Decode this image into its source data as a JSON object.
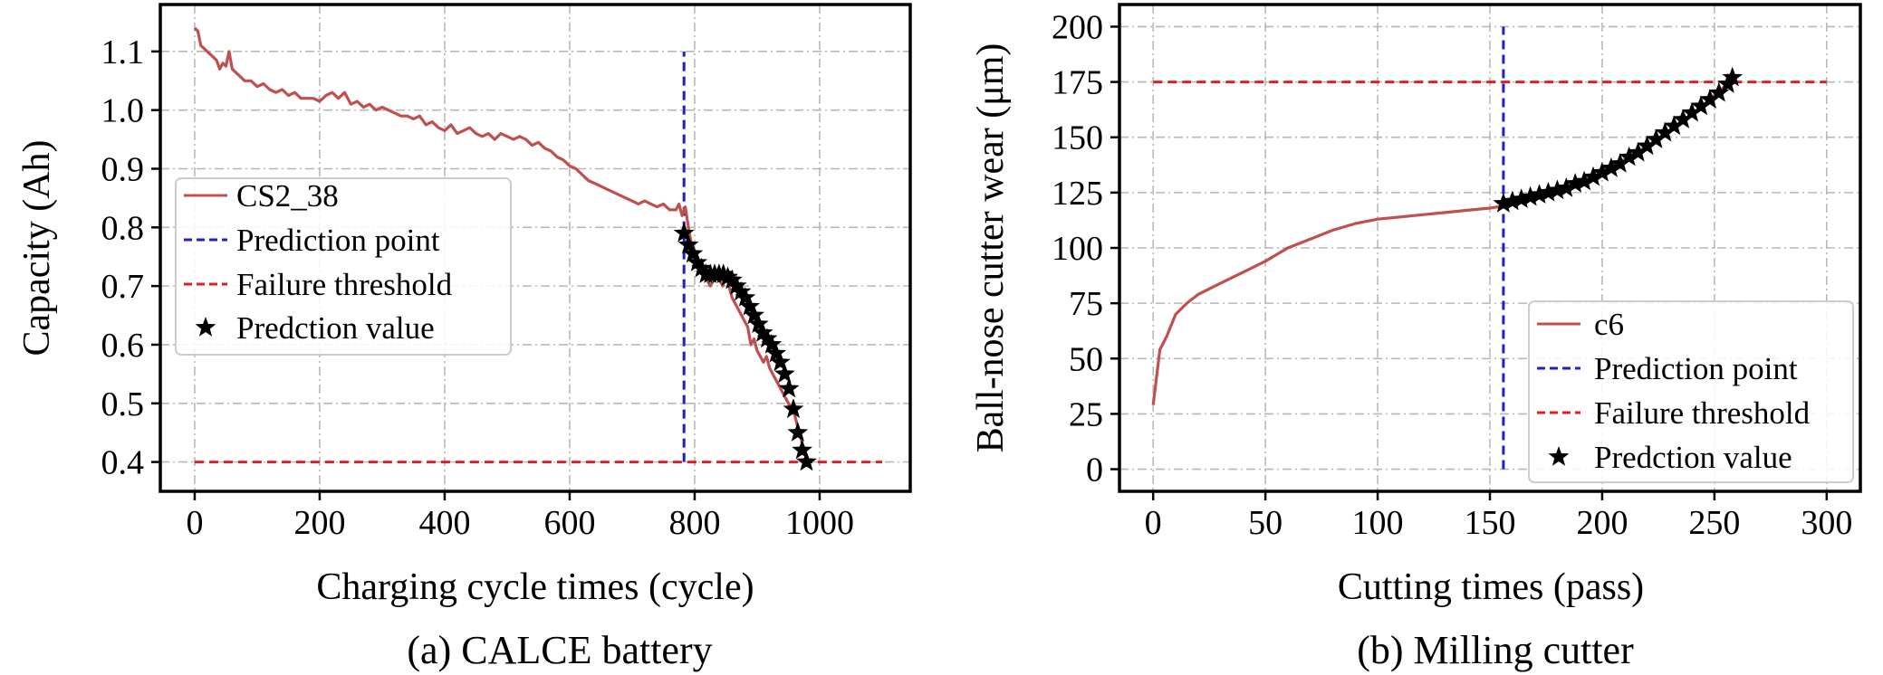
{
  "chart_data": [
    {
      "type": "line",
      "caption": "(a) CALCE battery",
      "xlabel": "Charging cycle times (cycle)",
      "ylabel": "Capacity (Ah)",
      "xlim": [
        -55,
        1145
      ],
      "ylim": [
        0.35,
        1.18
      ],
      "xticks": [
        0,
        200,
        400,
        600,
        800,
        1000
      ],
      "yticks": [
        0.4,
        0.5,
        0.6,
        0.7,
        0.8,
        0.9,
        1.0,
        1.1
      ],
      "ytick_labels": [
        "0.4",
        "0.5",
        "0.6",
        "0.7",
        "0.8",
        "0.9",
        "1.0",
        "1.1"
      ],
      "grid": true,
      "legend_position": "center-left",
      "series": [
        {
          "name": "CS2_38",
          "color": "#c0504d",
          "style": "line",
          "x": [
            0,
            5,
            10,
            15,
            20,
            25,
            30,
            35,
            40,
            45,
            50,
            55,
            60,
            70,
            80,
            90,
            100,
            110,
            120,
            130,
            140,
            150,
            160,
            170,
            180,
            190,
            200,
            210,
            220,
            230,
            240,
            250,
            260,
            270,
            280,
            290,
            300,
            310,
            320,
            330,
            340,
            350,
            360,
            370,
            380,
            390,
            400,
            410,
            420,
            430,
            440,
            450,
            460,
            470,
            480,
            490,
            500,
            510,
            520,
            530,
            540,
            550,
            560,
            570,
            580,
            590,
            600,
            610,
            620,
            630,
            640,
            650,
            660,
            670,
            680,
            690,
            700,
            710,
            720,
            730,
            740,
            750,
            760,
            770,
            775,
            780,
            785,
            790,
            795,
            800,
            805,
            810,
            815,
            820,
            825,
            830,
            835,
            840,
            845,
            850,
            855,
            860,
            865,
            870,
            875,
            880,
            885,
            890,
            895,
            900,
            905,
            910,
            915,
            920,
            925,
            930,
            935,
            940,
            945,
            950,
            955,
            960,
            965,
            970,
            975,
            980
          ],
          "y": [
            1.14,
            1.135,
            1.11,
            1.105,
            1.1,
            1.095,
            1.09,
            1.085,
            1.07,
            1.08,
            1.075,
            1.1,
            1.07,
            1.06,
            1.05,
            1.05,
            1.04,
            1.045,
            1.035,
            1.03,
            1.035,
            1.025,
            1.03,
            1.02,
            1.02,
            1.02,
            1.015,
            1.025,
            1.03,
            1.02,
            1.03,
            1.01,
            1.015,
            1.005,
            1.01,
            1.0,
            1.005,
            1.0,
            0.995,
            0.99,
            0.99,
            0.985,
            0.99,
            0.975,
            0.98,
            0.97,
            0.965,
            0.975,
            0.96,
            0.965,
            0.97,
            0.96,
            0.955,
            0.96,
            0.95,
            0.96,
            0.955,
            0.95,
            0.955,
            0.95,
            0.94,
            0.945,
            0.935,
            0.93,
            0.92,
            0.915,
            0.905,
            0.9,
            0.89,
            0.88,
            0.875,
            0.87,
            0.865,
            0.86,
            0.855,
            0.85,
            0.845,
            0.84,
            0.845,
            0.84,
            0.835,
            0.84,
            0.83,
            0.83,
            0.84,
            0.82,
            0.835,
            0.8,
            0.77,
            0.76,
            0.74,
            0.73,
            0.72,
            0.71,
            0.7,
            0.71,
            0.72,
            0.71,
            0.7,
            0.72,
            0.7,
            0.68,
            0.67,
            0.66,
            0.65,
            0.64,
            0.63,
            0.6,
            0.61,
            0.59,
            0.58,
            0.57,
            0.58,
            0.56,
            0.55,
            0.54,
            0.53,
            0.52,
            0.51,
            0.5,
            0.49,
            0.48,
            0.46,
            0.44,
            0.42,
            0.405
          ]
        },
        {
          "name": "Prediction point",
          "color": "#1f1fcc",
          "style": "dashed",
          "x": [
            783,
            783
          ],
          "y": [
            0.4,
            1.1
          ]
        },
        {
          "name": "Failure threshold",
          "color": "#e02020",
          "style": "dashed",
          "x": [
            0,
            1100
          ],
          "y": [
            0.4,
            0.4
          ]
        },
        {
          "name": "Predction value",
          "color": "#000000",
          "style": "star",
          "x": [
            783,
            790,
            797,
            804,
            811,
            818,
            825,
            832,
            839,
            846,
            853,
            860,
            867,
            874,
            881,
            888,
            895,
            902,
            909,
            916,
            923,
            930,
            937,
            944,
            951,
            958,
            965,
            972,
            979
          ],
          "y": [
            0.79,
            0.77,
            0.755,
            0.74,
            0.73,
            0.72,
            0.72,
            0.72,
            0.72,
            0.72,
            0.715,
            0.71,
            0.7,
            0.69,
            0.68,
            0.665,
            0.65,
            0.635,
            0.62,
            0.61,
            0.6,
            0.585,
            0.57,
            0.55,
            0.525,
            0.49,
            0.45,
            0.42,
            0.4
          ]
        }
      ]
    },
    {
      "type": "line",
      "caption": "(b) Milling cutter",
      "xlabel": "Cutting times (pass)",
      "ylabel": "Ball-nose cutter wear (μm)",
      "xlim": [
        -15,
        315
      ],
      "ylim": [
        -10,
        210
      ],
      "xticks": [
        0,
        50,
        100,
        150,
        200,
        250,
        300
      ],
      "yticks": [
        0,
        25,
        50,
        75,
        100,
        125,
        150,
        175,
        200
      ],
      "grid": true,
      "legend_position": "lower-right",
      "series": [
        {
          "name": "c6",
          "color": "#c0504d",
          "style": "line",
          "x": [
            0,
            3,
            6,
            10,
            15,
            20,
            30,
            40,
            50,
            60,
            70,
            80,
            90,
            100,
            110,
            120,
            130,
            140,
            150,
            156,
            160,
            170,
            180,
            190,
            200,
            210,
            220,
            230,
            240,
            250,
            257
          ],
          "y": [
            29,
            54,
            60,
            70,
            75,
            79,
            84,
            89,
            94,
            100,
            104,
            108,
            111,
            113,
            114,
            115,
            116,
            117,
            118,
            119,
            120,
            122,
            125,
            129,
            134,
            140,
            146,
            153,
            160,
            169,
            175
          ]
        },
        {
          "name": "Prediction point",
          "color": "#1f1fcc",
          "style": "dashed",
          "x": [
            156,
            156
          ],
          "y": [
            0,
            200
          ]
        },
        {
          "name": "Failure threshold",
          "color": "#e02020",
          "style": "dashed",
          "x": [
            0,
            300
          ],
          "y": [
            175,
            175
          ]
        },
        {
          "name": "Predction value",
          "color": "#000000",
          "style": "star",
          "x": [
            156,
            160,
            164,
            168,
            172,
            176,
            180,
            184,
            188,
            192,
            196,
            200,
            204,
            208,
            212,
            216,
            220,
            224,
            228,
            232,
            236,
            240,
            244,
            248,
            252,
            256,
            258
          ],
          "y": [
            120,
            121,
            122,
            123,
            124,
            125,
            126,
            127,
            129,
            130,
            132,
            134,
            136,
            138,
            141,
            143,
            146,
            149,
            152,
            155,
            158,
            161,
            164,
            167,
            170,
            174,
            177
          ]
        }
      ]
    }
  ]
}
